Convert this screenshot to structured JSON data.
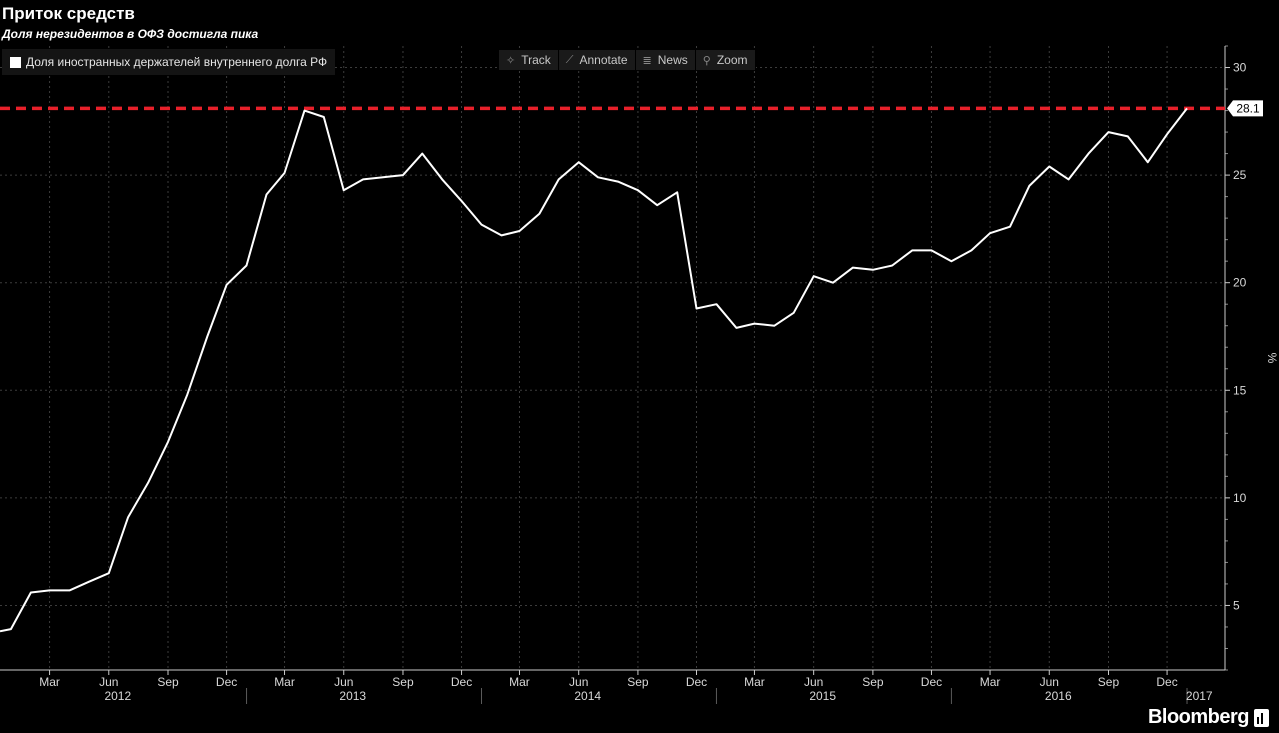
{
  "header": {
    "title": "Приток средств",
    "subtitle": "Доля нерезидентов в ОФЗ достигла пика"
  },
  "toolbar": {
    "items": [
      {
        "label": "Track",
        "icon": "crosshair-icon",
        "glyph": "✧"
      },
      {
        "label": "Annotate",
        "icon": "pencil-icon",
        "glyph": "⟋"
      },
      {
        "label": "News",
        "icon": "news-icon",
        "glyph": "≣"
      },
      {
        "label": "Zoom",
        "icon": "magnifier-icon",
        "glyph": "⚲"
      }
    ]
  },
  "logo": {
    "text": "Bloomberg"
  },
  "colors": {
    "background": "#000000",
    "line": "#ffffff",
    "reference": "#e8202a",
    "grid": "#3c3c3c"
  },
  "chart_data": {
    "type": "line",
    "title": "Приток средств",
    "subtitle": "Доля нерезидентов в ОФЗ достигла пика",
    "ylabel": "%",
    "ylim": [
      2,
      31
    ],
    "yticks": [
      5,
      10,
      15,
      20,
      25,
      30
    ],
    "xlim": [
      "2011-12-15",
      "2017-03-01"
    ],
    "grid": true,
    "legend_position": "top-left",
    "last_value_label": "28.1",
    "x_tick_labels": [
      {
        "date": "2012-03-01",
        "label": "Mar"
      },
      {
        "date": "2012-06-01",
        "label": "Jun"
      },
      {
        "date": "2012-09-01",
        "label": "Sep"
      },
      {
        "date": "2012-12-01",
        "label": "Dec"
      },
      {
        "date": "2013-03-01",
        "label": "Mar"
      },
      {
        "date": "2013-06-01",
        "label": "Jun"
      },
      {
        "date": "2013-09-01",
        "label": "Sep"
      },
      {
        "date": "2013-12-01",
        "label": "Dec"
      },
      {
        "date": "2014-03-01",
        "label": "Mar"
      },
      {
        "date": "2014-06-01",
        "label": "Jun"
      },
      {
        "date": "2014-09-01",
        "label": "Sep"
      },
      {
        "date": "2014-12-01",
        "label": "Dec"
      },
      {
        "date": "2015-03-01",
        "label": "Mar"
      },
      {
        "date": "2015-06-01",
        "label": "Jun"
      },
      {
        "date": "2015-09-01",
        "label": "Sep"
      },
      {
        "date": "2015-12-01",
        "label": "Dec"
      },
      {
        "date": "2016-03-01",
        "label": "Mar"
      },
      {
        "date": "2016-06-01",
        "label": "Jun"
      },
      {
        "date": "2016-09-01",
        "label": "Sep"
      },
      {
        "date": "2016-12-01",
        "label": "Dec"
      }
    ],
    "year_labels": [
      {
        "date": "2012-06-15",
        "label": "2012"
      },
      {
        "date": "2013-06-15",
        "label": "2013"
      },
      {
        "date": "2014-06-15",
        "label": "2014"
      },
      {
        "date": "2015-06-15",
        "label": "2015"
      },
      {
        "date": "2016-06-15",
        "label": "2016"
      },
      {
        "date": "2017-01-20",
        "label": "2017"
      }
    ],
    "year_separators": [
      "2013-01-01",
      "2014-01-01",
      "2015-01-01",
      "2016-01-01",
      "2017-01-01"
    ],
    "reference_lines": [
      {
        "y": 28.1,
        "style": "dashed"
      }
    ],
    "series": [
      {
        "name": "Доля иностранных держателей внутреннего долга РФ",
        "x": [
          "2011-12-15",
          "2012-01-01",
          "2012-02-01",
          "2012-03-01",
          "2012-04-01",
          "2012-05-01",
          "2012-06-01",
          "2012-07-01",
          "2012-08-01",
          "2012-09-01",
          "2012-10-01",
          "2012-11-01",
          "2012-12-01",
          "2013-01-01",
          "2013-02-01",
          "2013-03-01",
          "2013-04-01",
          "2013-05-01",
          "2013-06-01",
          "2013-07-01",
          "2013-08-01",
          "2013-09-01",
          "2013-10-01",
          "2013-11-01",
          "2013-12-01",
          "2014-01-01",
          "2014-02-01",
          "2014-03-01",
          "2014-04-01",
          "2014-05-01",
          "2014-06-01",
          "2014-07-01",
          "2014-08-01",
          "2014-09-01",
          "2014-10-01",
          "2014-11-01",
          "2014-12-01",
          "2015-01-01",
          "2015-02-01",
          "2015-03-01",
          "2015-04-01",
          "2015-05-01",
          "2015-06-01",
          "2015-07-01",
          "2015-08-01",
          "2015-09-01",
          "2015-10-01",
          "2015-11-01",
          "2015-12-01",
          "2016-01-01",
          "2016-02-01",
          "2016-03-01",
          "2016-04-01",
          "2016-05-01",
          "2016-06-01",
          "2016-07-01",
          "2016-08-01",
          "2016-09-01",
          "2016-10-01",
          "2016-11-01",
          "2016-12-01",
          "2017-01-01"
        ],
        "y": [
          3.8,
          3.9,
          5.6,
          5.7,
          5.7,
          6.1,
          6.5,
          9.1,
          10.7,
          12.6,
          14.8,
          17.5,
          19.9,
          20.8,
          24.1,
          25.1,
          28.0,
          27.7,
          24.3,
          24.8,
          24.9,
          25.0,
          26.0,
          24.8,
          23.8,
          22.7,
          22.2,
          22.4,
          23.2,
          24.8,
          25.6,
          24.9,
          24.7,
          24.3,
          23.6,
          24.2,
          18.8,
          19.0,
          17.9,
          18.1,
          18.0,
          18.6,
          20.3,
          20.0,
          20.7,
          20.6,
          20.8,
          21.5,
          21.5,
          21.0,
          21.5,
          22.3,
          22.6,
          24.5,
          25.4,
          24.8,
          26.0,
          27.0,
          26.8,
          25.6,
          26.9,
          28.1
        ]
      }
    ]
  }
}
